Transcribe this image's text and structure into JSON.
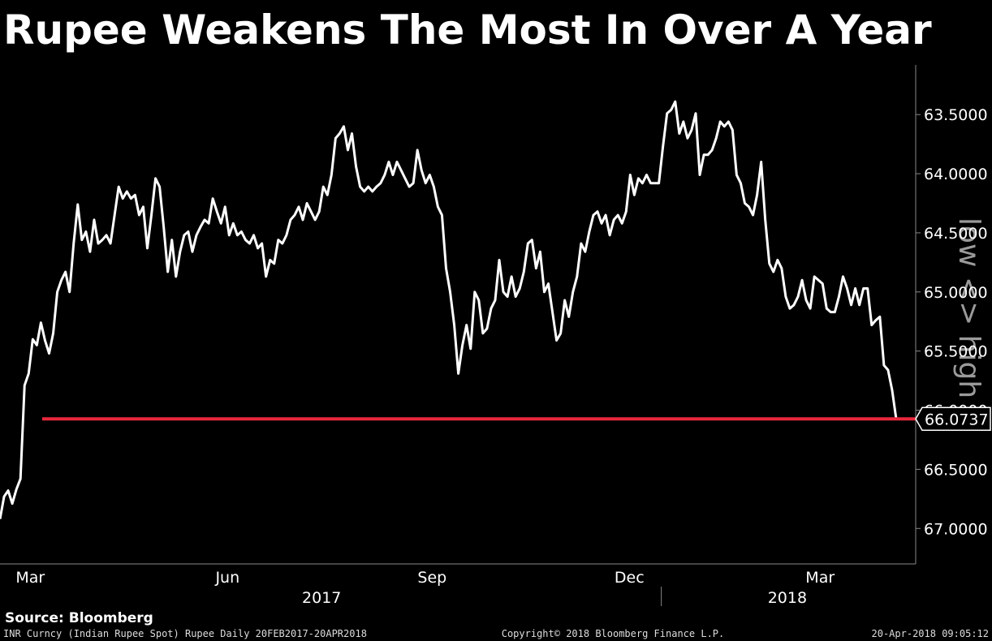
{
  "chart_data": {
    "type": "line",
    "title": "Rupee Weakens The Most In Over A Year",
    "side_label": "low <> high",
    "source": "Source: Bloomberg",
    "footer_left": "INR Curncy (Indian Rupee Spot) Rupee  Daily 20FEB2017-20APR2018",
    "footer_center": "Copyright© 2018 Bloomberg Finance L.P.",
    "footer_right": "20-Apr-2018 09:05:12",
    "color": "#ffffff",
    "last_value": 66.0737,
    "last_value_color": "#e8283c",
    "y_inverted": true,
    "ylim": [
      63.08,
      67.3
    ],
    "yticks": [
      {
        "value": 63.5,
        "label": "63.5000"
      },
      {
        "value": 64,
        "label": "64.0000"
      },
      {
        "value": 64.5,
        "label": "64.5000"
      },
      {
        "value": 65,
        "label": "65.0000"
      },
      {
        "value": 65.5,
        "label": "65.5000"
      },
      {
        "value": 66,
        "label": "66.0000"
      },
      {
        "value": 66.5,
        "label": "66.5000"
      },
      {
        "value": 67,
        "label": "67.0000"
      }
    ],
    "xlim": [
      0,
      219
    ],
    "xticks": [
      {
        "value": 7.4,
        "label": "Mar"
      },
      {
        "value": 55.6,
        "label": "Jun"
      },
      {
        "value": 105.6,
        "label": "Sep"
      },
      {
        "value": 153.8,
        "label": "Dec"
      },
      {
        "value": 200.4,
        "label": "Mar"
      }
    ],
    "year_labels": [
      {
        "value": 78.6,
        "label": "2017"
      },
      {
        "value": 192.4,
        "label": "2018"
      }
    ],
    "year_divider": 161.6,
    "values": [
      66.92,
      66.73,
      66.68,
      66.79,
      66.67,
      66.58,
      65.79,
      65.69,
      65.4,
      65.45,
      65.26,
      65.41,
      65.52,
      65.35,
      65.0,
      64.9,
      64.83,
      65.0,
      64.59,
      64.26,
      64.56,
      64.49,
      64.66,
      64.39,
      64.59,
      64.56,
      64.52,
      64.59,
      64.35,
      64.11,
      64.21,
      64.15,
      64.21,
      64.18,
      64.35,
      64.28,
      64.63,
      64.35,
      64.04,
      64.11,
      64.45,
      64.83,
      64.56,
      64.87,
      64.66,
      64.52,
      64.49,
      64.66,
      64.52,
      64.45,
      64.39,
      64.42,
      64.21,
      64.32,
      64.42,
      64.28,
      64.52,
      64.42,
      64.52,
      64.49,
      64.56,
      64.59,
      64.52,
      64.63,
      64.59,
      64.87,
      64.73,
      64.76,
      64.56,
      64.59,
      64.52,
      64.39,
      64.35,
      64.28,
      64.39,
      64.25,
      64.32,
      64.39,
      64.32,
      64.11,
      64.18,
      64.01,
      63.7,
      63.66,
      63.6,
      63.8,
      63.66,
      63.94,
      64.11,
      64.15,
      64.11,
      64.15,
      64.11,
      64.08,
      64.01,
      63.9,
      64.01,
      63.9,
      63.97,
      64.04,
      64.11,
      64.08,
      63.8,
      63.97,
      64.08,
      64.01,
      64.11,
      64.28,
      64.35,
      64.8,
      65.0,
      65.28,
      65.69,
      65.45,
      65.28,
      65.48,
      65.0,
      65.07,
      65.35,
      65.31,
      65.14,
      65.07,
      64.73,
      65.0,
      65.04,
      64.87,
      65.04,
      64.97,
      64.83,
      64.59,
      64.56,
      64.8,
      64.66,
      65.0,
      64.93,
      65.17,
      65.41,
      65.35,
      65.07,
      65.21,
      65.0,
      64.87,
      64.59,
      64.66,
      64.49,
      64.35,
      64.32,
      64.42,
      64.35,
      64.52,
      64.39,
      64.35,
      64.42,
      64.32,
      64.01,
      64.18,
      64.04,
      64.08,
      64.01,
      64.08,
      64.08,
      64.08,
      63.77,
      63.49,
      63.46,
      63.39,
      63.66,
      63.56,
      63.7,
      63.63,
      63.49,
      64.01,
      63.84,
      63.84,
      63.8,
      63.7,
      63.56,
      63.6,
      63.56,
      63.63,
      64.01,
      64.08,
      64.25,
      64.28,
      64.35,
      64.18,
      63.9,
      64.39,
      64.76,
      64.83,
      64.73,
      64.8,
      65.04,
      65.14,
      65.11,
      65.04,
      64.9,
      65.07,
      65.14,
      64.87,
      64.9,
      64.93,
      65.14,
      65.17,
      65.17,
      65.04,
      64.87,
      64.97,
      65.11,
      64.97,
      65.11,
      64.97,
      64.97,
      65.28,
      65.24,
      65.21,
      65.62,
      65.66,
      65.83,
      66.0737
    ]
  }
}
